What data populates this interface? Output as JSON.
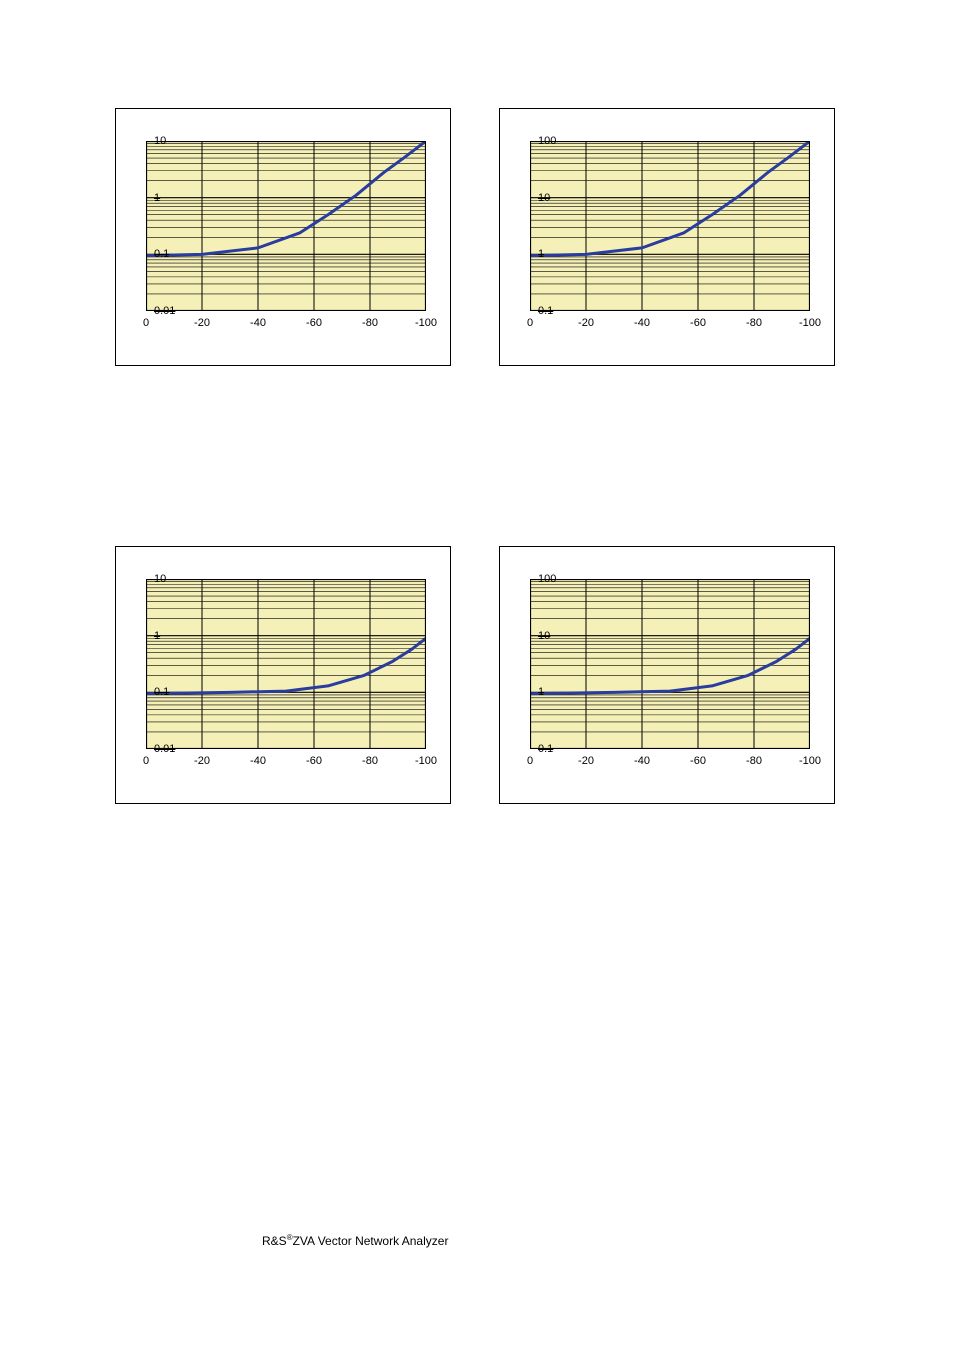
{
  "page": {
    "footer_prefix": "R&S",
    "footer_sup": "®",
    "footer_rest": "ZVA Vector Network Analyzer"
  },
  "common": {
    "x_ticks": [
      "0",
      "-20",
      "-40",
      "-60",
      "-80",
      "-100"
    ],
    "x_tick_positions_pct": [
      0,
      20,
      40,
      60,
      80,
      100
    ],
    "panel_border": "#000000",
    "plot_bg": "#f5f0b8",
    "grid_color": "#000000",
    "curve_color": "#2a3c9e",
    "curve_width": 3,
    "frame_stroke": "#000000",
    "x_label_fontsize": 11,
    "y_label_fontsize": 11
  },
  "charts": [
    {
      "id": "top-left",
      "y_decades": 3,
      "y_labels": [
        "10",
        "1",
        "0.1",
        "0.01"
      ],
      "curve": [
        {
          "x": 0,
          "y": 0.095
        },
        {
          "x": 20,
          "y": 0.1
        },
        {
          "x": 40,
          "y": 0.13
        },
        {
          "x": 55,
          "y": 0.24
        },
        {
          "x": 65,
          "y": 0.5
        },
        {
          "x": 75,
          "y": 1.1
        },
        {
          "x": 85,
          "y": 2.8
        },
        {
          "x": 92,
          "y": 5.0
        },
        {
          "x": 100,
          "y": 10.0
        }
      ],
      "y_min": 0.01,
      "y_max": 10
    },
    {
      "id": "top-right",
      "y_decades": 3,
      "y_labels": [
        "100",
        "10",
        "1",
        "0.1"
      ],
      "curve": [
        {
          "x": 0,
          "y": 0.95
        },
        {
          "x": 20,
          "y": 1.0
        },
        {
          "x": 40,
          "y": 1.3
        },
        {
          "x": 55,
          "y": 2.4
        },
        {
          "x": 65,
          "y": 5.0
        },
        {
          "x": 75,
          "y": 11.0
        },
        {
          "x": 85,
          "y": 28.0
        },
        {
          "x": 92,
          "y": 50.0
        },
        {
          "x": 100,
          "y": 100.0
        }
      ],
      "y_min": 0.1,
      "y_max": 100
    },
    {
      "id": "bottom-left",
      "y_decades": 3,
      "y_labels": [
        "10",
        "1",
        "0.1",
        "0.01"
      ],
      "curve": [
        {
          "x": 0,
          "y": 0.095
        },
        {
          "x": 30,
          "y": 0.1
        },
        {
          "x": 50,
          "y": 0.105
        },
        {
          "x": 65,
          "y": 0.13
        },
        {
          "x": 78,
          "y": 0.2
        },
        {
          "x": 88,
          "y": 0.35
        },
        {
          "x": 95,
          "y": 0.58
        },
        {
          "x": 100,
          "y": 0.9
        }
      ],
      "y_min": 0.01,
      "y_max": 10
    },
    {
      "id": "bottom-right",
      "y_decades": 3,
      "y_labels": [
        "100",
        "10",
        "1",
        "0.1"
      ],
      "curve": [
        {
          "x": 0,
          "y": 0.95
        },
        {
          "x": 30,
          "y": 1.0
        },
        {
          "x": 50,
          "y": 1.05
        },
        {
          "x": 65,
          "y": 1.3
        },
        {
          "x": 78,
          "y": 2.0
        },
        {
          "x": 88,
          "y": 3.5
        },
        {
          "x": 95,
          "y": 5.8
        },
        {
          "x": 100,
          "y": 9.0
        }
      ],
      "y_min": 0.1,
      "y_max": 100
    }
  ]
}
